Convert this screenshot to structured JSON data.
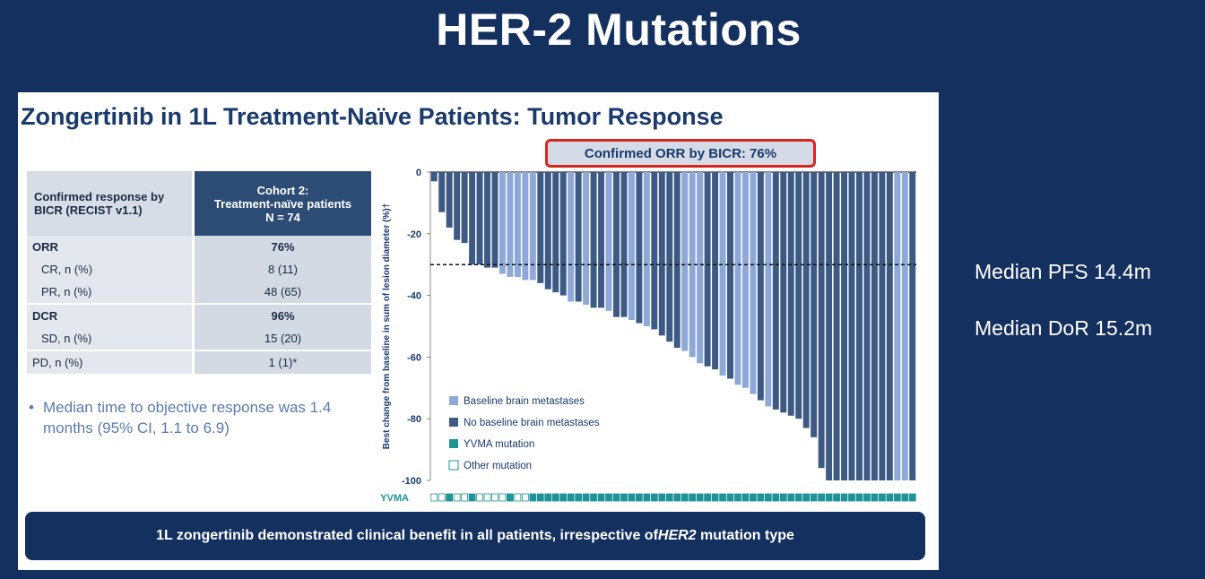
{
  "page_title": "HER-2 Mutations",
  "slide": {
    "title": "Zongertinib in 1L Treatment-Naïve Patients: Tumor Response",
    "orr_callout": "Confirmed ORR by BICR: 76%",
    "table": {
      "header_left": "Confirmed response by BICR (RECIST v1.1)",
      "header_right_line1": "Cohort 2:",
      "header_right_line2": "Treatment-naïve patients",
      "header_right_line3": "N = 74",
      "rows": [
        {
          "label": "ORR",
          "value": "76%"
        },
        {
          "label": "CR, n (%)",
          "value": "8 (11)"
        },
        {
          "label": "PR, n (%)",
          "value": "48 (65)"
        },
        {
          "label": "DCR",
          "value": "96%"
        },
        {
          "label": "SD, n (%)",
          "value": "15 (20)"
        },
        {
          "label": "PD, n (%)",
          "value": "1 (1)*"
        }
      ]
    },
    "bullet": {
      "marker": "•",
      "text": "Median time to objective response was 1.4 months (95% CI, 1.1 to 6.9)"
    },
    "banner": {
      "before": "1L zongertinib demonstrated clinical benefit in all patients, irrespective of ",
      "emph": "HER2",
      "after": " mutation type"
    }
  },
  "side_stats": {
    "pfs": "Median PFS 14.4m",
    "dor": "Median DoR 15.2m"
  },
  "colors": {
    "baseline_brain": "#8ea8d8",
    "no_baseline_brain": "#3c5a83",
    "yvma": "#1e9398",
    "other_mutation": "#ffffff",
    "callout_border": "#d7261e",
    "navy": "#14305e"
  },
  "chart_data": {
    "type": "bar",
    "ylabel": "Best change from baseline in sum of lesion diameter (%)†",
    "ylim": [
      -100,
      0
    ],
    "yticks": [
      0,
      -20,
      -40,
      -60,
      -80,
      -100
    ],
    "threshold": -30,
    "mutation_row_label": "YVMA",
    "legend": {
      "position": "bottom-left",
      "entries": [
        {
          "key": "baseline_brain",
          "label": "Baseline brain metastases"
        },
        {
          "key": "no_baseline_brain",
          "label": "No baseline brain metastases"
        },
        {
          "key": "yvma",
          "label": "YVMA mutation"
        },
        {
          "key": "other_mutation",
          "label": "Other mutation"
        }
      ]
    },
    "values": [
      -3,
      -13,
      -18,
      -22,
      -23,
      -30,
      -30,
      -31,
      -31,
      -33,
      -34,
      -34,
      -35,
      -35,
      -36,
      -38,
      -39,
      -40,
      -42,
      -42,
      -43,
      -44,
      -44,
      -45,
      -47,
      -47,
      -48,
      -49,
      -50,
      -51,
      -53,
      -55,
      -57,
      -58,
      -60,
      -62,
      -63,
      -64,
      -66,
      -67,
      -69,
      -70,
      -72,
      -74,
      -76,
      -77,
      -78,
      -79,
      -80,
      -83,
      -86,
      -96,
      -100,
      -100,
      -100,
      -100,
      -100,
      -100,
      -100,
      -100,
      -100,
      -100,
      -100,
      -100
    ],
    "brain_metastases": [
      0,
      0,
      0,
      0,
      0,
      0,
      0,
      0,
      0,
      1,
      1,
      1,
      1,
      1,
      0,
      0,
      0,
      0,
      1,
      0,
      1,
      0,
      0,
      1,
      0,
      0,
      1,
      0,
      1,
      0,
      0,
      0,
      0,
      1,
      1,
      1,
      0,
      0,
      1,
      0,
      1,
      1,
      1,
      0,
      1,
      0,
      0,
      0,
      0,
      0,
      0,
      0,
      0,
      0,
      0,
      0,
      0,
      0,
      0,
      0,
      0,
      1,
      1,
      0
    ],
    "mutation": [
      "Other",
      "Other",
      "YVMA",
      "Other",
      "Other",
      "YVMA",
      "Other",
      "Other",
      "Other",
      "Other",
      "YVMA",
      "Other",
      "Other",
      "YVMA",
      "YVMA",
      "YVMA",
      "YVMA",
      "YVMA",
      "YVMA",
      "YVMA",
      "YVMA",
      "YVMA",
      "YVMA",
      "YVMA",
      "YVMA",
      "YVMA",
      "YVMA",
      "YVMA",
      "YVMA",
      "YVMA",
      "YVMA",
      "YVMA",
      "YVMA",
      "YVMA",
      "YVMA",
      "YVMA",
      "YVMA",
      "YVMA",
      "YVMA",
      "YVMA",
      "YVMA",
      "YVMA",
      "YVMA",
      "YVMA",
      "YVMA",
      "YVMA",
      "YVMA",
      "YVMA",
      "YVMA",
      "YVMA",
      "YVMA",
      "YVMA",
      "YVMA",
      "YVMA",
      "YVMA",
      "YVMA",
      "YVMA",
      "YVMA",
      "YVMA",
      "YVMA",
      "YVMA",
      "YVMA",
      "YVMA",
      "YVMA"
    ]
  }
}
